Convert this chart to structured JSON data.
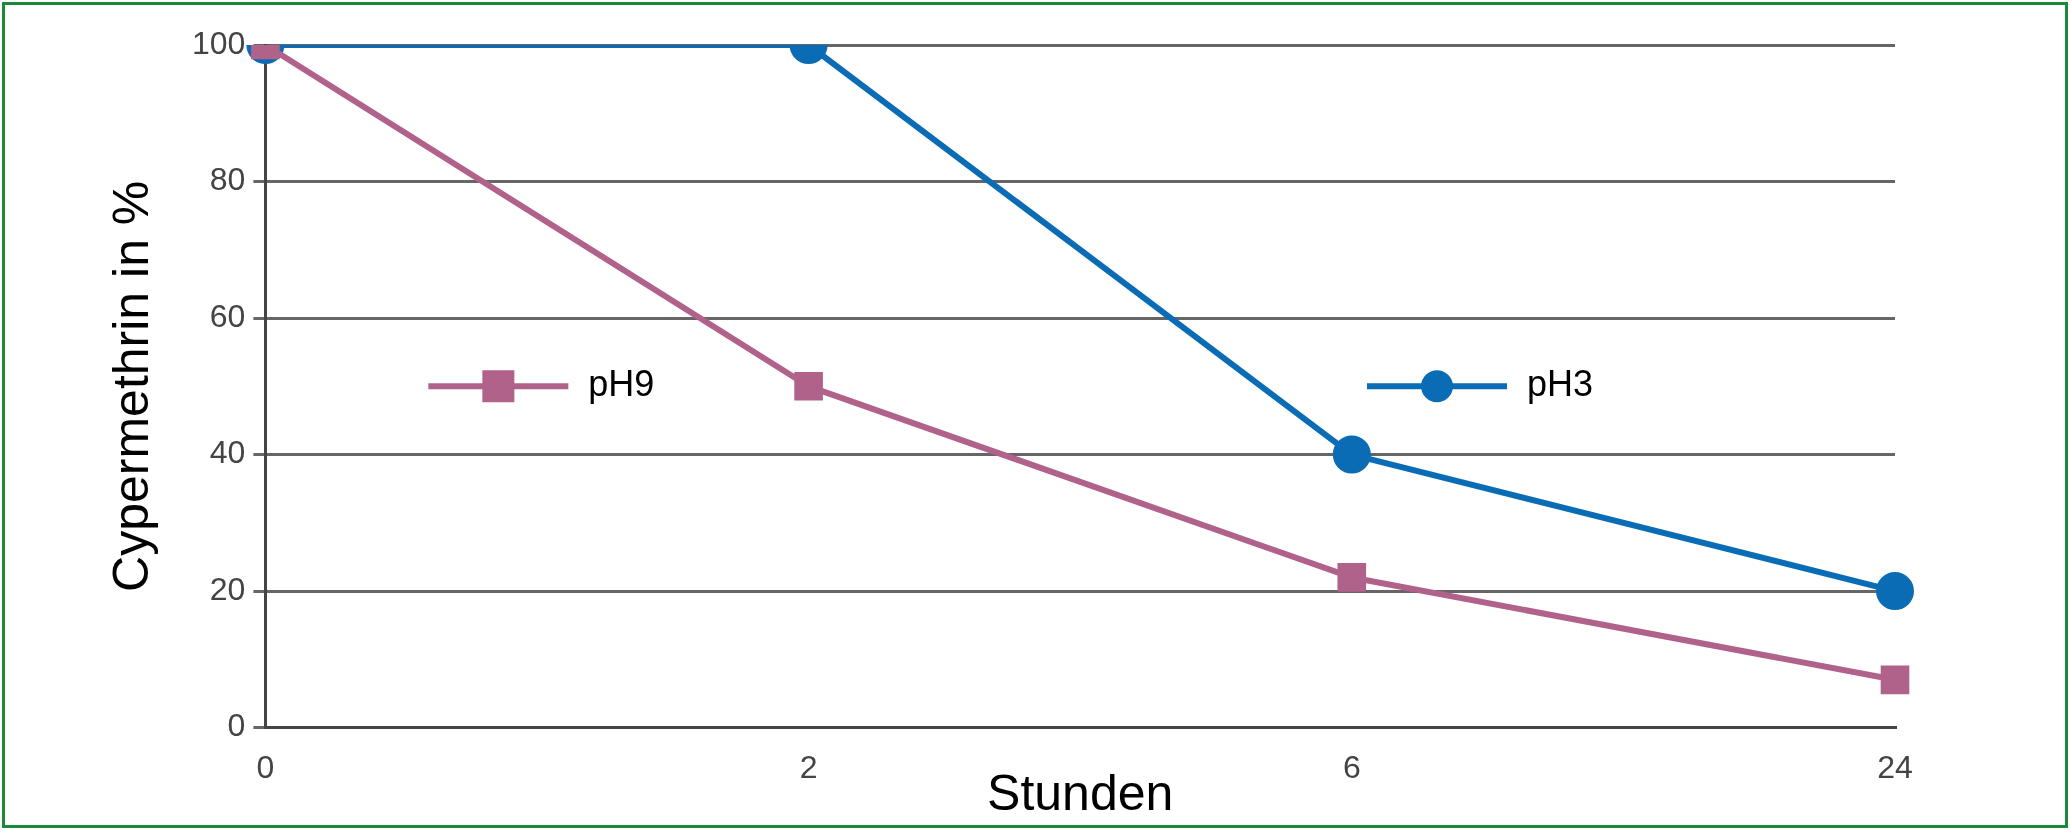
{
  "chart_data": {
    "type": "line",
    "xlabel": "Stunden",
    "ylabel": "Cypermethrin in %",
    "categories": [
      "0",
      "2",
      "6",
      "24"
    ],
    "series": [
      {
        "name": "pH9",
        "color": "#b0628a",
        "marker": "square",
        "values": [
          100,
          50,
          22,
          7
        ]
      },
      {
        "name": "pH3",
        "color": "#0a6cb4",
        "marker": "circle",
        "values": [
          100,
          100,
          40,
          20
        ]
      }
    ],
    "ylim": [
      0,
      100
    ],
    "yticks": [
      0,
      20,
      40,
      60,
      80,
      100
    ],
    "grid": "y",
    "legend": "center",
    "line_style": "solid"
  }
}
